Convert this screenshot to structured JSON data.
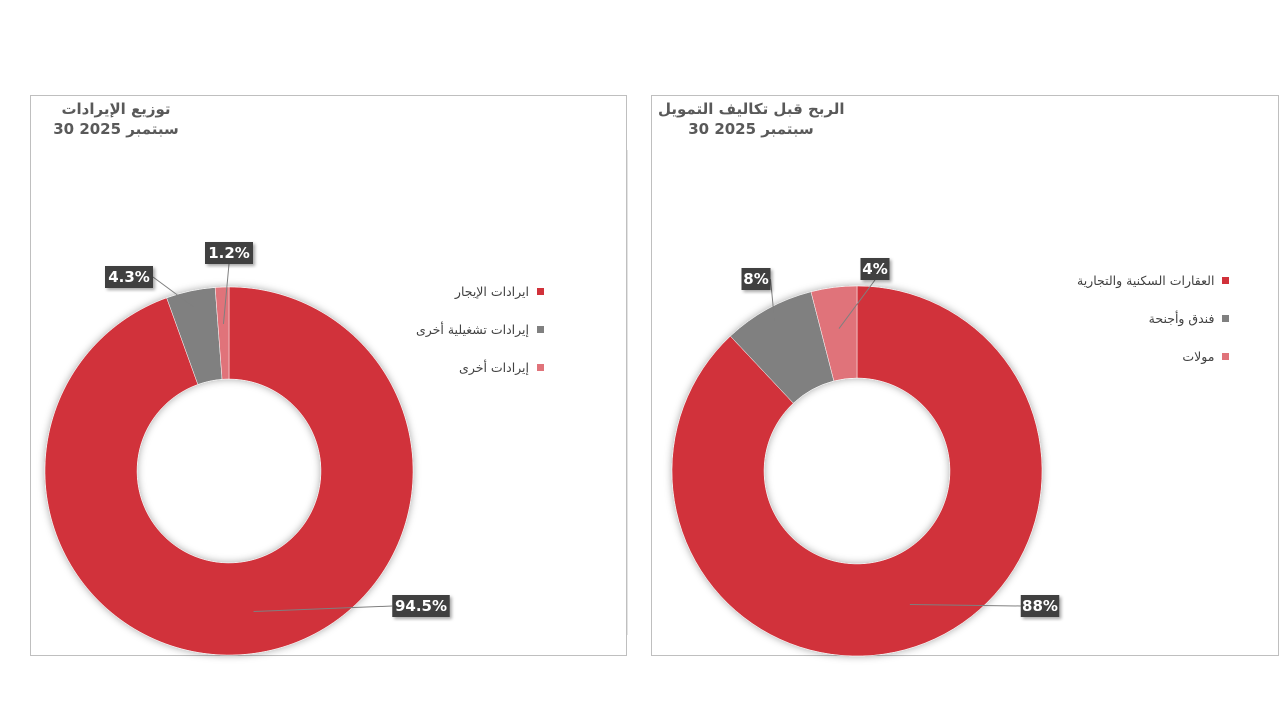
{
  "chart_data": [
    {
      "type": "pie",
      "donut": true,
      "title": "توزيع الإيرادات",
      "subtitle": "30 سبتمبر 2025",
      "categories": [
        "ايرادات الإيجار",
        "إيرادات تشغيلية أخرى",
        "إيرادات أخرى"
      ],
      "values": [
        94.5,
        4.3,
        1.2
      ],
      "value_labels": [
        "94.5%",
        "4.3%",
        "1.2%"
      ],
      "colors": [
        "#d1313a",
        "#808080",
        "#e0737a"
      ],
      "legend_position": "right"
    },
    {
      "type": "pie",
      "donut": true,
      "title": "الربح قبل تكاليف التمويل",
      "subtitle": "30 سبتمبر 2025",
      "categories": [
        "العقارات السكنية والتجارية",
        "فندق وأجنحة",
        "مولات"
      ],
      "values": [
        88,
        8,
        4
      ],
      "value_labels": [
        "88%",
        "8%",
        "4%"
      ],
      "colors": [
        "#d1313a",
        "#808080",
        "#e0737a"
      ],
      "legend_position": "right"
    }
  ]
}
